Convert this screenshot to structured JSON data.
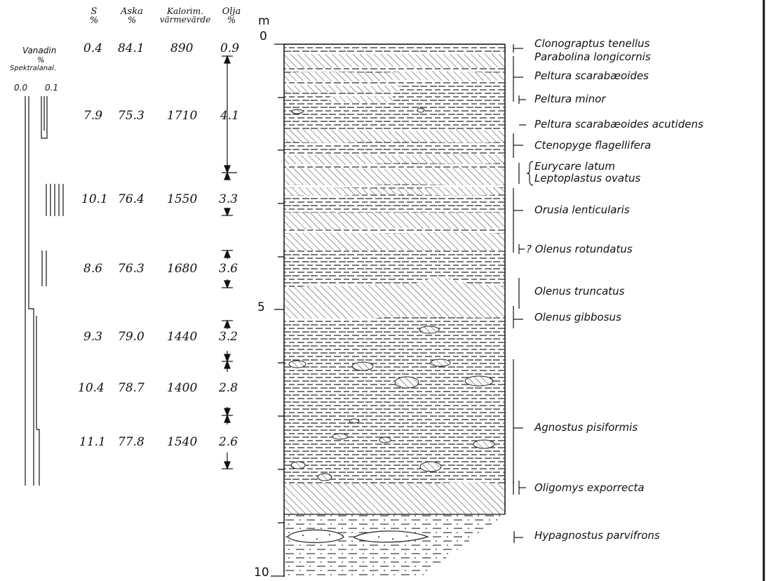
{
  "headers": {
    "s": {
      "line1": "S",
      "line2": "%"
    },
    "aska": {
      "line1": "Aska",
      "line2": "%"
    },
    "kalorim": {
      "line1": "Kalorim.",
      "line2": "värmevärde"
    },
    "olja": {
      "line1": "Olja",
      "line2": "%"
    }
  },
  "vanadin": {
    "title": "Vanadin",
    "unit": "%",
    "method": "Spektralanal.",
    "scale_min": "0.0",
    "scale_max": "0.1"
  },
  "depth_unit": "m",
  "depth_labels": [
    "0",
    "5",
    "10"
  ],
  "samples": [
    {
      "s": "0.4",
      "aska": "84.1",
      "kal": "890",
      "olja": "0.9"
    },
    {
      "s": "7.9",
      "aska": "75.3",
      "kal": "1710",
      "olja": "4.1"
    },
    {
      "s": "10.1",
      "aska": "76.4",
      "kal": "1550",
      "olja": "3.3"
    },
    {
      "s": "8.6",
      "aska": "76.3",
      "kal": "1680",
      "olja": "3.6"
    },
    {
      "s": "9.3",
      "aska": "79.0",
      "kal": "1440",
      "olja": "3.2"
    },
    {
      "s": "10.4",
      "aska": "78.7",
      "kal": "1400",
      "olja": "2.8"
    },
    {
      "s": "11.1",
      "aska": "77.8",
      "kal": "1540",
      "olja": "2.6"
    }
  ],
  "fossils": [
    "Clonograptus tenellus",
    "Parabolina longicornis",
    "Peltura scarabæoides",
    "Peltura minor",
    "Peltura scarabæoides acutidens",
    "Ctenopyge flagellifera",
    "Eurycare latum",
    "Leptoplastus ovatus",
    "Orusia lenticularis",
    "? Olenus rotundatus",
    "Olenus truncatus",
    "Olenus gibbosus",
    "Agnostus pisiformis",
    "Oligomys exporrecta",
    "Hypagnostus parvifrons"
  ]
}
